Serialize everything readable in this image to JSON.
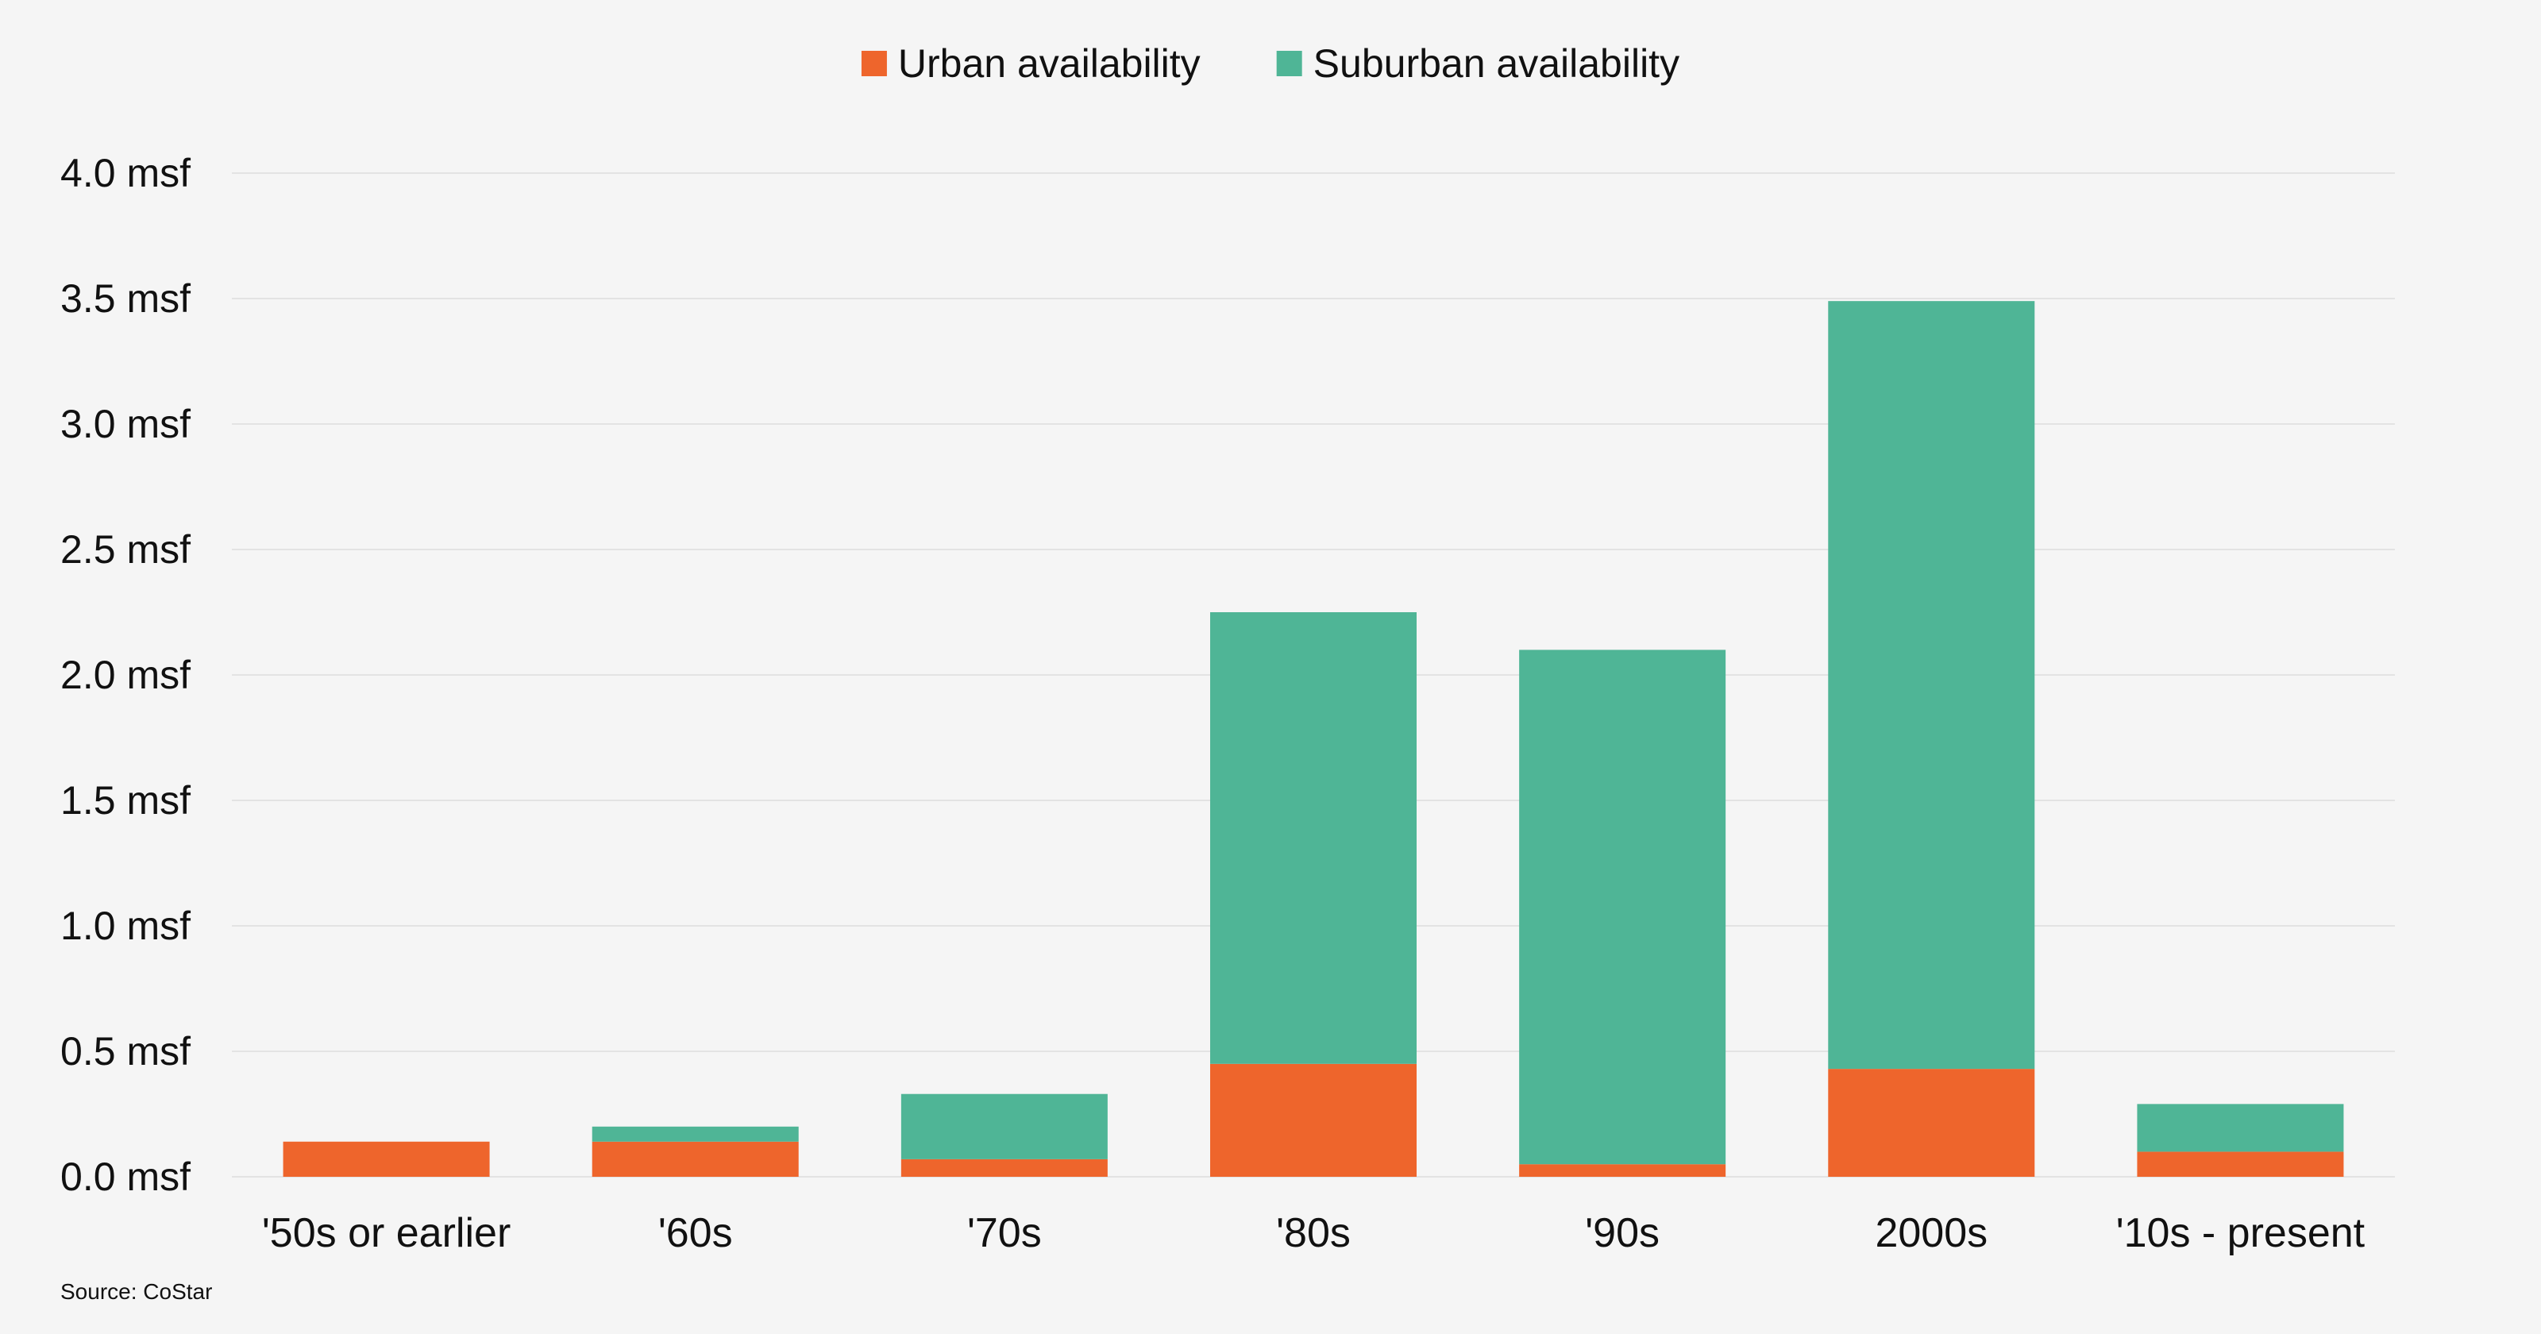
{
  "chart_data": {
    "type": "bar",
    "stacked": true,
    "categories": [
      "'50s or earlier",
      "'60s",
      "'70s",
      "'80s",
      "'90s",
      "2000s",
      "'10s - present"
    ],
    "series": [
      {
        "name": "Urban availability",
        "color": "#ee652c",
        "values": [
          0.14,
          0.14,
          0.07,
          0.45,
          0.05,
          0.43,
          0.1
        ]
      },
      {
        "name": "Suburban availability",
        "color": "#4fb596",
        "values": [
          0.0,
          0.06,
          0.26,
          1.8,
          2.05,
          3.06,
          0.19
        ]
      }
    ],
    "y_ticks": [
      "0.0 msf",
      "0.5 msf",
      "1.0 msf",
      "1.5 msf",
      "2.0 msf",
      "2.5 msf",
      "3.0 msf",
      "3.5 msf",
      "4.0 msf"
    ],
    "ylim": [
      0,
      4.0
    ],
    "grid": true,
    "legend_position": "top-center",
    "source": "Source: CoStar"
  }
}
